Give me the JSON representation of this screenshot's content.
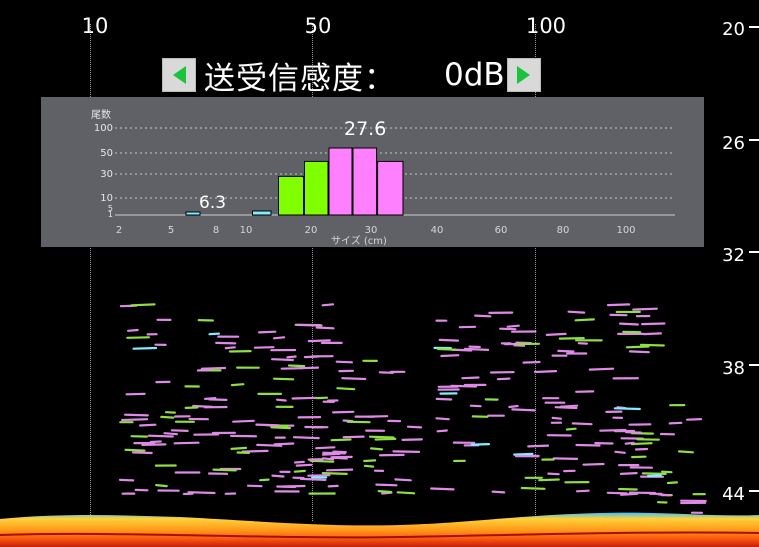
{
  "range_axis": {
    "labels": [
      "10",
      "50",
      "100"
    ]
  },
  "depth_axis": {
    "labels": [
      "20",
      "26",
      "32",
      "38",
      "44"
    ]
  },
  "gain_control": {
    "label": "送受信感度：",
    "value": "0dB",
    "decrease_icon": "triangle-left-icon",
    "increase_icon": "triangle-right-icon",
    "arrow_color": "#19c43a"
  },
  "histogram": {
    "y_title": "尾数",
    "y_ticks": [
      "100",
      "50",
      "30",
      "10",
      "5",
      "1"
    ],
    "x_ticks": [
      "2",
      "5",
      "8",
      "10",
      "20",
      "30",
      "40",
      "60",
      "80",
      "100"
    ],
    "x_title": "サイズ (cm)",
    "annotations": [
      "6.3",
      "27.6"
    ],
    "colors": {
      "small": "#7ff0ff",
      "medium": "#80ff00",
      "large": "#ff80ff"
    }
  },
  "chart_data": {
    "type": "bar",
    "x_axis_label": "サイズ (cm)",
    "y_axis_label": "尾数",
    "x_tick_labels": [
      "2",
      "5",
      "8",
      "10",
      "20",
      "30",
      "40",
      "60",
      "80",
      "100"
    ],
    "y_tick_labels": [
      "100",
      "50",
      "30",
      "10",
      "5",
      "1"
    ],
    "annotations": [
      "6.3",
      "27.6"
    ],
    "bins": [
      {
        "size_from": 6,
        "size_to": 7,
        "count": 1,
        "group": "small"
      },
      {
        "size_from": 11,
        "size_to": 14,
        "count": 3,
        "group": "small"
      },
      {
        "size_from": 15,
        "size_to": 19,
        "count": 28,
        "group": "medium"
      },
      {
        "size_from": 19,
        "size_to": 23,
        "count": 42,
        "group": "medium"
      },
      {
        "size_from": 23,
        "size_to": 27,
        "count": 60,
        "group": "large"
      },
      {
        "size_from": 27,
        "size_to": 31,
        "count": 60,
        "group": "large"
      },
      {
        "size_from": 31,
        "size_to": 35,
        "count": 42,
        "group": "large"
      }
    ],
    "grid": true,
    "legend": "none"
  }
}
